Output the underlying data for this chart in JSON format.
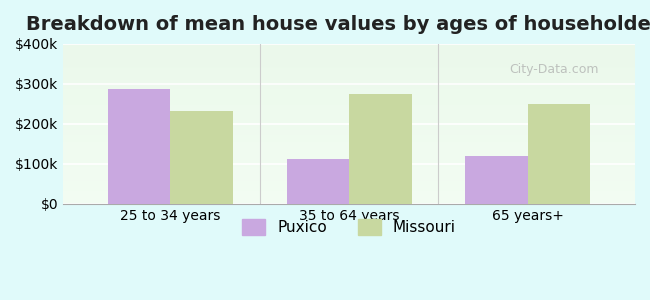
{
  "title": "Breakdown of mean house values by ages of householders",
  "categories": [
    "25 to 34 years",
    "35 to 64 years",
    "65 years+"
  ],
  "puxico_values": [
    287000,
    112000,
    120000
  ],
  "missouri_values": [
    232000,
    275000,
    250000
  ],
  "puxico_color": "#c9a8e0",
  "missouri_color": "#c8d8a0",
  "ylim": [
    0,
    400000
  ],
  "yticks": [
    0,
    100000,
    200000,
    300000,
    400000
  ],
  "ytick_labels": [
    "$0",
    "$100k",
    "$200k",
    "$300k",
    "$400k"
  ],
  "background_color": "#e0fafa",
  "plot_bg_start": "#f0faf0",
  "plot_bg_end": "#ffffff",
  "bar_width": 0.35,
  "legend_labels": [
    "Puxico",
    "Missouri"
  ],
  "title_fontsize": 14,
  "tick_fontsize": 10,
  "legend_fontsize": 11
}
